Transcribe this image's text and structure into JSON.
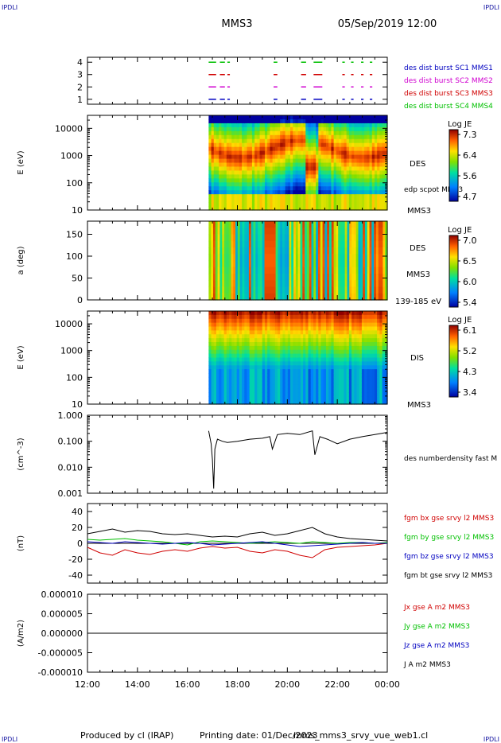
{
  "header": {
    "corner_tl": "IPDLI",
    "corner_tr": "IPDLI",
    "corner_bl": "IPDLI",
    "corner_br": "IPDLI",
    "spacecraft": "MMS3",
    "datetime": "05/Sep/2019 12:00"
  },
  "footer": {
    "produced": "Produced by cl (IRAP)",
    "printing_date": "Printing date: 01/Dec/2023",
    "script": "mms_mms3_srvy_vue_web1.cl"
  },
  "x_axis": {
    "ticks": [
      "12:00",
      "14:00",
      "16:00",
      "18:00",
      "20:00",
      "22:00",
      "00:00"
    ],
    "range_hours": [
      12,
      24
    ]
  },
  "colors": {
    "red": "#d00000",
    "green": "#00c000",
    "blue": "#0000c0",
    "magenta": "#d000d0",
    "black": "#000000"
  },
  "chart_data": [
    {
      "id": "burst",
      "type": "scatter",
      "yticks": [
        "1",
        "2",
        "3",
        "4"
      ],
      "ylim": [
        0.6,
        4.4
      ],
      "legend": [
        {
          "label": "des dist burst SC1 MMS1",
          "color": "#0000c0"
        },
        {
          "label": "des dist burst SC2 MMS2",
          "color": "#d000d0"
        },
        {
          "label": "des dist burst SC3 MMS3",
          "color": "#d00000"
        },
        {
          "label": "des dist burst SC4 MMS4",
          "color": "#00c000"
        }
      ],
      "intervals_hours": [
        [
          16.85,
          17.15
        ],
        [
          17.3,
          17.5
        ],
        [
          17.6,
          17.7
        ],
        [
          19.45,
          19.6
        ],
        [
          20.55,
          20.75
        ],
        [
          21.05,
          21.4
        ],
        [
          22.2,
          22.3
        ],
        [
          22.55,
          22.65
        ],
        [
          22.95,
          23.05
        ],
        [
          23.3,
          23.4
        ]
      ]
    },
    {
      "id": "des_energy",
      "type": "heatmap",
      "ylabel": "E (eV)",
      "ylog": true,
      "ylim": [
        10,
        30000
      ],
      "yticks": [
        "10",
        "100",
        "1000",
        "10000"
      ],
      "species": "DES",
      "spacecraft": "MMS3",
      "overlay_label": "edp scpot MMS3",
      "colorbar": {
        "title": "Log JE",
        "ticks": [
          "7.3",
          "6.4",
          "5.6",
          "4.7"
        ]
      },
      "data_start_hour": 16.85
    },
    {
      "id": "des_pitch",
      "type": "heatmap",
      "ylabel": "a (deg)",
      "ylim": [
        0,
        180
      ],
      "yticks": [
        "0",
        "50",
        "100",
        "150"
      ],
      "species": "DES",
      "spacecraft": "MMS3",
      "energy_range": "139-185 eV",
      "colorbar": {
        "title": "Log JE",
        "ticks": [
          "7.0",
          "6.5",
          "6.0",
          "5.4"
        ]
      },
      "data_start_hour": 16.85
    },
    {
      "id": "dis_energy",
      "type": "heatmap",
      "ylabel": "E (eV)",
      "ylog": true,
      "ylim": [
        10,
        30000
      ],
      "yticks": [
        "10",
        "100",
        "1000",
        "10000"
      ],
      "species": "DIS",
      "spacecraft": "MMS3",
      "colorbar": {
        "title": "Log JE",
        "ticks": [
          "6.1",
          "5.2",
          "4.3",
          "3.4"
        ]
      },
      "data_start_hour": 16.85
    },
    {
      "id": "density",
      "type": "line",
      "ylabel": "(cm^-3)",
      "ylog": true,
      "ylim": [
        0.001,
        1.0
      ],
      "yticks": [
        "0.001",
        "0.010",
        "0.100",
        "1.000"
      ],
      "legend": [
        {
          "label": "des numberdensity fast M",
          "color": "#000000"
        }
      ],
      "series": [
        {
          "x": [
            16.85,
            16.95,
            17.0,
            17.05,
            17.1,
            17.2,
            17.4,
            17.6,
            18.0,
            18.5,
            19.0,
            19.3,
            19.4,
            19.6,
            20.0,
            20.5,
            21.0,
            21.1,
            21.3,
            21.6,
            22.0,
            22.5,
            23.0,
            23.5,
            24.0
          ],
          "y": [
            0.25,
            0.08,
            0.02,
            0.0015,
            0.05,
            0.12,
            0.1,
            0.09,
            0.1,
            0.12,
            0.13,
            0.15,
            0.05,
            0.18,
            0.2,
            0.18,
            0.25,
            0.03,
            0.15,
            0.12,
            0.08,
            0.12,
            0.15,
            0.18,
            0.22
          ]
        }
      ]
    },
    {
      "id": "bfield",
      "type": "line",
      "ylabel": "(nT)",
      "ylim": [
        -50,
        50
      ],
      "yticks": [
        "-40",
        "-20",
        "0",
        "20",
        "40"
      ],
      "legend": [
        {
          "label": "fgm bx gse srvy l2 MMS3",
          "color": "#d00000"
        },
        {
          "label": "fgm by gse srvy l2 MMS3",
          "color": "#00c000"
        },
        {
          "label": "fgm bz gse srvy l2 MMS3",
          "color": "#0000c0"
        },
        {
          "label": "fgm bt gse srvy l2 MMS3",
          "color": "#000000"
        }
      ],
      "series": [
        {
          "name": "fgm bx gse srvy l2 MMS3",
          "x": [
            12,
            12.5,
            13,
            13.5,
            14,
            14.5,
            15,
            15.5,
            16,
            16.5,
            17,
            17.5,
            18,
            18.5,
            19,
            19.5,
            20,
            20.5,
            21,
            21.5,
            22,
            22.5,
            23,
            23.5,
            24
          ],
          "y": [
            -5,
            -12,
            -15,
            -8,
            -12,
            -14,
            -10,
            -8,
            -10,
            -6,
            -4,
            -6,
            -5,
            -10,
            -12,
            -8,
            -10,
            -15,
            -18,
            -8,
            -5,
            -4,
            -3,
            -2,
            0
          ]
        },
        {
          "name": "fgm by gse srvy l2 MMS3",
          "x": [
            12,
            12.5,
            13,
            13.5,
            14,
            14.5,
            15,
            15.5,
            16,
            16.5,
            17,
            17.5,
            18,
            18.5,
            19,
            19.5,
            20,
            20.5,
            21,
            21.5,
            22,
            22.5,
            23,
            23.5,
            24
          ],
          "y": [
            5,
            4,
            5,
            6,
            4,
            3,
            2,
            0,
            -2,
            2,
            3,
            2,
            1,
            0,
            1,
            2,
            1,
            0,
            2,
            1,
            0,
            1,
            1,
            0,
            1
          ]
        },
        {
          "name": "fgm bz gse srvy l2 MMS3",
          "x": [
            12,
            12.5,
            13,
            13.5,
            14,
            14.5,
            15,
            15.5,
            16,
            16.5,
            17,
            17.5,
            18,
            18.5,
            19,
            19.5,
            20,
            20.5,
            21,
            21.5,
            22,
            22.5,
            23,
            23.5,
            24
          ],
          "y": [
            2,
            1,
            0,
            2,
            1,
            0,
            -1,
            0,
            1,
            0,
            -2,
            -1,
            0,
            1,
            2,
            0,
            -2,
            -4,
            -3,
            -2,
            -1,
            0,
            1,
            0,
            0
          ]
        },
        {
          "name": "fgm bt gse srvy l2 MMS3",
          "x": [
            12,
            12.5,
            13,
            13.5,
            14,
            14.5,
            15,
            15.5,
            16,
            16.5,
            17,
            17.5,
            18,
            18.5,
            19,
            19.5,
            20,
            20.5,
            21,
            21.5,
            22,
            22.5,
            23,
            23.5,
            24
          ],
          "y": [
            12,
            15,
            18,
            14,
            16,
            15,
            12,
            11,
            12,
            10,
            8,
            9,
            8,
            12,
            14,
            10,
            12,
            16,
            20,
            12,
            8,
            6,
            5,
            4,
            3
          ]
        }
      ]
    },
    {
      "id": "current",
      "type": "line",
      "ylabel": "(A/m2)",
      "ylim": [
        -1e-05,
        1e-05
      ],
      "yticks": [
        "-0.000010",
        "-0.000005",
        "0.000000",
        "0.000005",
        "0.000010"
      ],
      "legend": [
        {
          "label": "Jx gse A m2 MMS3",
          "color": "#d00000"
        },
        {
          "label": "Jy gse A m2 MMS3",
          "color": "#00c000"
        },
        {
          "label": "Jz gse A m2 MMS3",
          "color": "#0000c0"
        },
        {
          "label": "J A m2 MMS3",
          "color": "#000000"
        }
      ],
      "series": [
        {
          "name": "J A m2 MMS3",
          "x": [
            12,
            24
          ],
          "y": [
            0,
            0
          ]
        }
      ]
    }
  ]
}
